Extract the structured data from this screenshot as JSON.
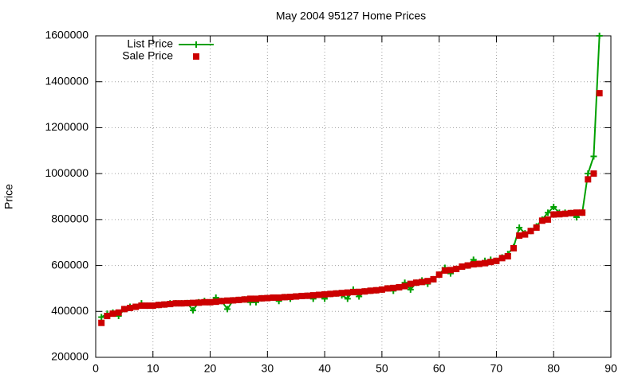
{
  "chart_data": {
    "type": "line",
    "title": "May 2004 95127 Home Prices",
    "y_label": "Price",
    "x": [
      1,
      2,
      3,
      4,
      5,
      6,
      7,
      8,
      9,
      10,
      11,
      12,
      13,
      14,
      15,
      16,
      17,
      18,
      19,
      20,
      21,
      22,
      23,
      24,
      25,
      26,
      27,
      28,
      29,
      30,
      31,
      32,
      33,
      34,
      35,
      36,
      37,
      38,
      39,
      40,
      41,
      42,
      43,
      44,
      45,
      46,
      47,
      48,
      49,
      50,
      51,
      52,
      53,
      54,
      55,
      56,
      57,
      58,
      59,
      60,
      61,
      62,
      63,
      64,
      65,
      66,
      67,
      68,
      69,
      70,
      71,
      72,
      73,
      74,
      75,
      76,
      77,
      78,
      79,
      80,
      81,
      82,
      83,
      84,
      85,
      86,
      87,
      88
    ],
    "series": [
      {
        "name": "List Price",
        "color": "#00a000",
        "marker": "plus",
        "line": true,
        "values": [
          375000,
          390000,
          395000,
          380000,
          410000,
          420000,
          420000,
          435000,
          425000,
          425000,
          428000,
          430000,
          435000,
          435000,
          435000,
          436000,
          405000,
          440000,
          445000,
          440000,
          460000,
          445000,
          410000,
          448000,
          450000,
          452000,
          440000,
          440000,
          457000,
          458000,
          460000,
          445000,
          462000,
          455000,
          465000,
          467000,
          468000,
          455000,
          472000,
          455000,
          476000,
          478000,
          470000,
          455000,
          495000,
          465000,
          487000,
          490000,
          492000,
          495000,
          500000,
          490000,
          505000,
          525000,
          495000,
          525000,
          535000,
          520000,
          540000,
          560000,
          590000,
          565000,
          585000,
          595000,
          600000,
          625000,
          607000,
          620000,
          625000,
          620000,
          635000,
          650000,
          680000,
          765000,
          740000,
          750000,
          770000,
          800000,
          830000,
          855000,
          830000,
          830000,
          828000,
          810000,
          830000,
          1000000,
          1075000,
          1600000
        ]
      },
      {
        "name": "Sale Price",
        "color": "#cc0000",
        "marker": "square",
        "line": false,
        "values": [
          350000,
          380000,
          390000,
          395000,
          410000,
          415000,
          420000,
          425000,
          425000,
          425000,
          428000,
          430000,
          432000,
          435000,
          435000,
          436000,
          437000,
          438000,
          440000,
          440000,
          442000,
          445000,
          447000,
          448000,
          450000,
          452000,
          455000,
          455000,
          457000,
          458000,
          460000,
          460000,
          462000,
          463000,
          465000,
          467000,
          468000,
          470000,
          472000,
          474000,
          476000,
          478000,
          480000,
          482000,
          484000,
          485000,
          487000,
          490000,
          492000,
          495000,
          500000,
          502000,
          505000,
          510000,
          520000,
          525000,
          528000,
          532000,
          540000,
          560000,
          578000,
          580000,
          585000,
          595000,
          600000,
          605000,
          607000,
          610000,
          615000,
          620000,
          632000,
          640000,
          675000,
          730000,
          735000,
          750000,
          765000,
          795000,
          800000,
          822000,
          823000,
          825000,
          828000,
          830000,
          830000,
          975000,
          1000000,
          1350000
        ]
      }
    ],
    "xlim": [
      0,
      90
    ],
    "xticks": [
      0,
      10,
      20,
      30,
      40,
      50,
      60,
      70,
      80,
      90
    ],
    "ylim": [
      200000,
      1600000
    ],
    "yticks": [
      200000,
      400000,
      600000,
      800000,
      1000000,
      1200000,
      1400000,
      1600000
    ],
    "grid": true,
    "legend": "top-left"
  }
}
